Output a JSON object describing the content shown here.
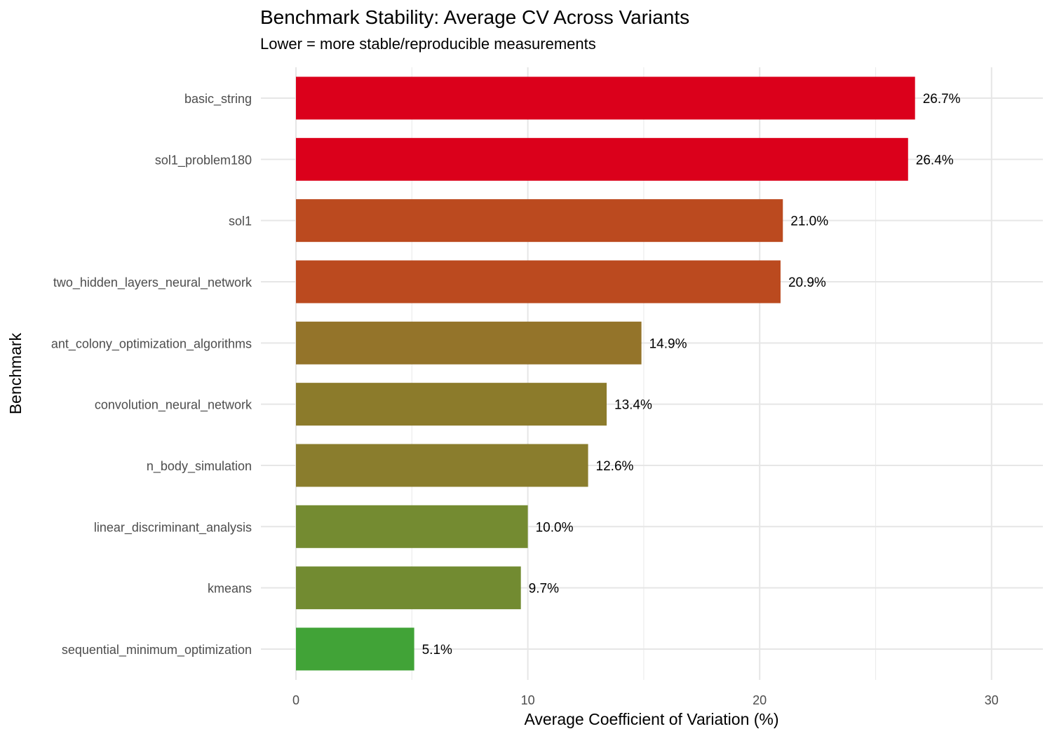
{
  "chart_data": {
    "type": "bar",
    "orientation": "horizontal",
    "title": "Benchmark Stability: Average CV Across Variants",
    "subtitle": "Lower = more stable/reproducible measurements",
    "xlabel": "Average Coefficient of Variation (%)",
    "ylabel": "Benchmark",
    "xlim": [
      0,
      31.5
    ],
    "xticks": [
      0,
      10,
      20,
      30
    ],
    "grid": true,
    "legend": "none",
    "categories": [
      "basic_string",
      "sol1_problem180",
      "sol1",
      "two_hidden_layers_neural_network",
      "ant_colony_optimization_algorithms",
      "convolution_neural_network",
      "n_body_simulation",
      "linear_discriminant_analysis",
      "kmeans",
      "sequential_minimum_optimization"
    ],
    "values": [
      26.7,
      26.4,
      21.0,
      20.9,
      14.9,
      13.4,
      12.6,
      10.0,
      9.7,
      5.1
    ],
    "labels": [
      "26.7%",
      "26.4%",
      "21.0%",
      "20.9%",
      "14.9%",
      "13.4%",
      "12.6%",
      "10.0%",
      "9.7%",
      "5.1%"
    ],
    "colors": [
      "#db001b",
      "#db001b",
      "#bb4a1f",
      "#bb4a1f",
      "#94742a",
      "#8c7b2b",
      "#8a7d2d",
      "#748b31",
      "#728b31",
      "#41a337"
    ]
  }
}
